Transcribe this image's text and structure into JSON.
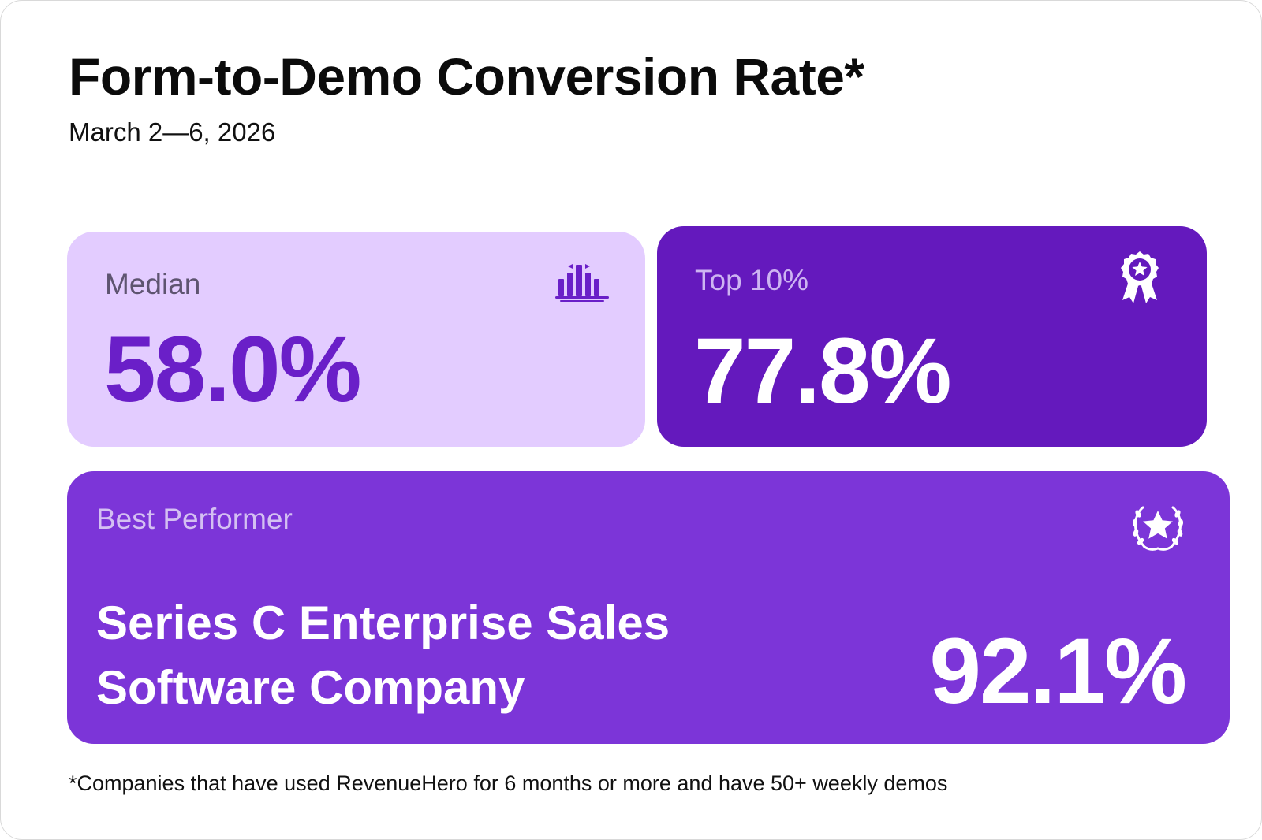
{
  "header": {
    "title": "Form-to-Demo Conversion Rate*",
    "date_range": "March 2—6, 2026"
  },
  "cards": {
    "median": {
      "label": "Median",
      "value": "58.0%",
      "icon": "bar-chart-icon"
    },
    "top10": {
      "label": "Top 10%",
      "value": "77.8%",
      "icon": "award-ribbon-icon"
    },
    "best": {
      "label": "Best Performer",
      "company_line1": "Series C Enterprise Sales",
      "company_line2": "Software Company",
      "value": "92.1%",
      "icon": "laurel-star-icon"
    }
  },
  "footnote": "*Companies that have used RevenueHero for 6 months or more and have 50+ weekly demos",
  "colors": {
    "median_bg": "#e3ccff",
    "median_value": "#6a1fc8",
    "top_bg": "#6419bd",
    "best_bg": "#7c35d8",
    "text_dark": "#0b0b0b"
  }
}
